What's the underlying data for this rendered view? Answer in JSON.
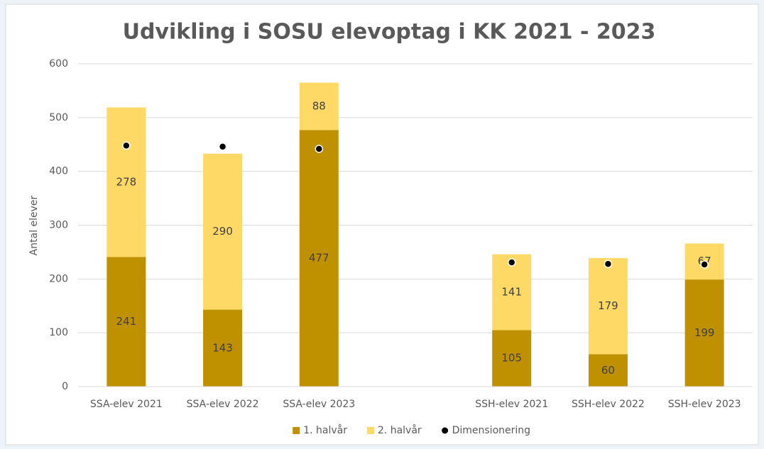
{
  "chart_data": {
    "type": "bar",
    "stacked": true,
    "title": "Udvikling i SOSU elevoptag i KK 2021 - 2023",
    "y_label": "Antal elever",
    "categories": [
      "SSA-elev 2021",
      "SSA-elev 2022",
      "SSA-elev 2023",
      null,
      "SSH-elev 2021",
      "SSH-elev 2022",
      "SSH-elev 2023"
    ],
    "series": [
      {
        "name": "1. halvår",
        "color": "#bf9000",
        "values": [
          241,
          143,
          477,
          null,
          105,
          60,
          199
        ]
      },
      {
        "name": "2. halvår",
        "color": "#ffd966",
        "values": [
          278,
          290,
          88,
          null,
          141,
          179,
          67
        ]
      },
      {
        "name": "Dimensionering",
        "type": "scatter",
        "color": "#000000",
        "values": [
          448,
          446,
          442,
          null,
          231,
          228,
          227
        ]
      }
    ],
    "ylim": [
      0,
      600
    ],
    "yticks": [
      0,
      100,
      200,
      300,
      400,
      500,
      600
    ],
    "grid": true,
    "legend": "bottom"
  }
}
